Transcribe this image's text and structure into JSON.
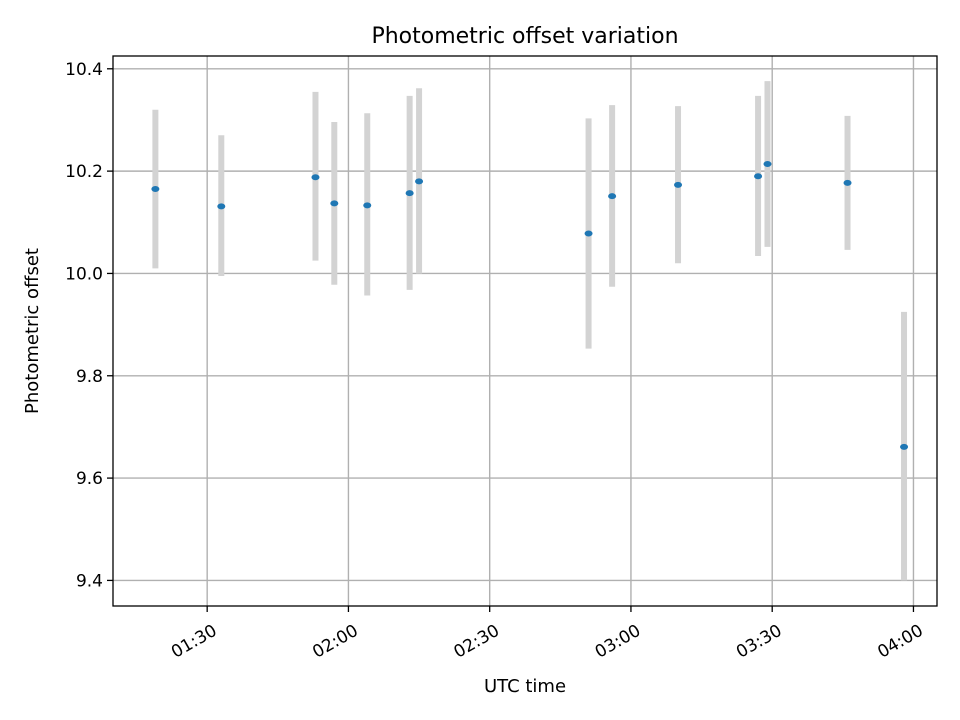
{
  "chart_data": {
    "type": "scatter",
    "title": "Photometric offset variation",
    "xlabel": "UTC time",
    "ylabel": "Photometric offset",
    "x_axis": "time",
    "xlim": [
      "01:10",
      "04:05"
    ],
    "ylim": [
      9.35,
      10.425
    ],
    "xticks": [
      "01:30",
      "02:00",
      "02:30",
      "03:00",
      "03:30",
      "04:00"
    ],
    "yticks": [
      9.4,
      9.6,
      9.8,
      10.0,
      10.2,
      10.4
    ],
    "grid": true,
    "marker_color": "#1f77b4",
    "error_color": "#d3d3d3",
    "points": [
      {
        "x": "01:19",
        "y": 10.165,
        "lo": 10.01,
        "hi": 10.32
      },
      {
        "x": "01:33",
        "y": 10.131,
        "lo": 9.995,
        "hi": 10.27
      },
      {
        "x": "01:53",
        "y": 10.188,
        "lo": 10.025,
        "hi": 10.355
      },
      {
        "x": "01:57",
        "y": 10.137,
        "lo": 9.978,
        "hi": 10.296
      },
      {
        "x": "02:04",
        "y": 10.133,
        "lo": 9.957,
        "hi": 10.313
      },
      {
        "x": "02:13",
        "y": 10.157,
        "lo": 9.968,
        "hi": 10.347
      },
      {
        "x": "02:15",
        "y": 10.18,
        "lo": 10.0,
        "hi": 10.362
      },
      {
        "x": "02:51",
        "y": 10.078,
        "lo": 9.853,
        "hi": 10.303
      },
      {
        "x": "02:56",
        "y": 10.151,
        "lo": 9.974,
        "hi": 10.329
      },
      {
        "x": "03:10",
        "y": 10.173,
        "lo": 10.02,
        "hi": 10.327
      },
      {
        "x": "03:27",
        "y": 10.19,
        "lo": 10.034,
        "hi": 10.347
      },
      {
        "x": "03:29",
        "y": 10.214,
        "lo": 10.052,
        "hi": 10.376
      },
      {
        "x": "03:46",
        "y": 10.177,
        "lo": 10.046,
        "hi": 10.308
      },
      {
        "x": "03:58",
        "y": 9.661,
        "lo": 9.4,
        "hi": 9.925
      }
    ]
  }
}
